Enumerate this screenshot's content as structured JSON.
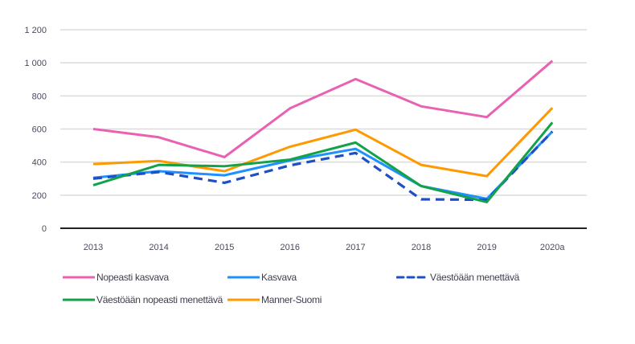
{
  "chart_data": {
    "type": "line",
    "title": "",
    "xlabel": "",
    "ylabel": "",
    "categories": [
      "2013",
      "2014",
      "2015",
      "2016",
      "2017",
      "2018",
      "2019",
      "2020a"
    ],
    "ylim": [
      0,
      1200
    ],
    "yticks": [
      0,
      200,
      400,
      600,
      800,
      1000,
      1200
    ],
    "ytick_labels": [
      "0",
      "200",
      "400",
      "600",
      "800",
      "1 000",
      "1 200"
    ],
    "grid": true,
    "legend_position": "bottom",
    "series": [
      {
        "name": "Nopeasti kasvava",
        "color": "#e961b2",
        "dashed": false,
        "values": [
          600,
          550,
          430,
          725,
          902,
          737,
          672,
          1012
        ]
      },
      {
        "name": "Kasvava",
        "color": "#1e90ff",
        "dashed": false,
        "values": [
          305,
          345,
          320,
          410,
          480,
          255,
          178,
          585
        ]
      },
      {
        "name": "Väestöään menettävä",
        "color": "#1f4fc4",
        "dashed": true,
        "values": [
          300,
          340,
          275,
          380,
          455,
          175,
          172,
          585
        ]
      },
      {
        "name": "Väestöään nopeasti menettävä",
        "color": "#12a24a",
        "dashed": false,
        "values": [
          260,
          383,
          375,
          415,
          518,
          255,
          158,
          640
        ]
      },
      {
        "name": "Manner-Suomi",
        "color": "#ff9900",
        "dashed": false,
        "values": [
          388,
          407,
          345,
          493,
          596,
          383,
          315,
          728
        ]
      }
    ]
  }
}
